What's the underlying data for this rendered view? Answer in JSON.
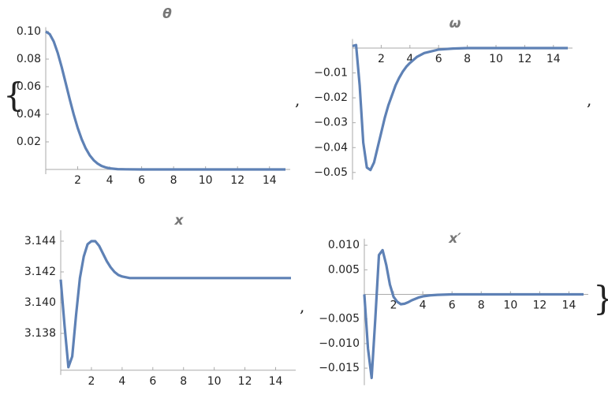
{
  "list_open": "{",
  "separators": [
    ",",
    ",",
    ","
  ],
  "list_close": "}",
  "chart_data": [
    {
      "type": "line",
      "title": "θ",
      "color": "#5e81b5",
      "x": [
        0,
        0.25,
        0.5,
        0.75,
        1,
        1.25,
        1.5,
        1.75,
        2,
        2.25,
        2.5,
        2.75,
        3,
        3.25,
        3.5,
        3.75,
        4,
        4.5,
        5,
        6,
        7,
        8,
        10,
        12,
        15
      ],
      "values": [
        0.1,
        0.0981,
        0.0928,
        0.0845,
        0.0741,
        0.0626,
        0.0509,
        0.0399,
        0.0301,
        0.0219,
        0.0153,
        0.0103,
        0.0067,
        0.0042,
        0.0025,
        0.0015,
        0.0008,
        0.0002,
        0.0001,
        0,
        0,
        0,
        0,
        0,
        0
      ],
      "xlim": [
        0,
        15
      ],
      "ylim": [
        0,
        0.102
      ],
      "xticks": [
        2,
        4,
        6,
        8,
        10,
        12,
        14
      ],
      "yticks": [
        {
          "value": 0.1,
          "label": "0.10"
        },
        0.08,
        0.06,
        0.04,
        0.02
      ]
    },
    {
      "type": "line",
      "title": "ω",
      "color": "#5e81b5",
      "x": [
        0,
        0.25,
        0.5,
        0.75,
        1,
        1.25,
        1.5,
        1.75,
        2,
        2.25,
        2.5,
        2.75,
        3,
        3.25,
        3.5,
        3.75,
        4,
        4.5,
        5,
        6,
        7,
        8,
        10,
        12,
        15
      ],
      "values": [
        0.0008,
        0.0012,
        -0.015,
        -0.038,
        -0.048,
        -0.049,
        -0.046,
        -0.04,
        -0.034,
        -0.028,
        -0.023,
        -0.019,
        -0.015,
        -0.012,
        -0.0095,
        -0.0075,
        -0.006,
        -0.0035,
        -0.002,
        -0.0006,
        -0.0002,
        0,
        0,
        0,
        0
      ],
      "xlim": [
        0,
        15
      ],
      "ylim": [
        -0.051,
        0.003
      ],
      "xticks": [
        2,
        4,
        6,
        8,
        10,
        12,
        14
      ],
      "yticks": [
        {
          "value": -0.01,
          "label": "−0.01"
        },
        {
          "value": -0.02,
          "label": "−0.02"
        },
        {
          "value": -0.03,
          "label": "−0.03"
        },
        {
          "value": -0.04,
          "label": "−0.04"
        },
        {
          "value": -0.05,
          "label": "−0.05"
        }
      ]
    },
    {
      "type": "line",
      "title": "x",
      "color": "#5e81b5",
      "x": [
        0,
        0.25,
        0.5,
        0.75,
        1,
        1.25,
        1.5,
        1.75,
        2,
        2.25,
        2.5,
        2.75,
        3,
        3.25,
        3.5,
        3.75,
        4,
        4.5,
        5,
        6,
        7,
        8,
        10,
        12,
        15
      ],
      "values": [
        3.1415,
        3.1385,
        3.1358,
        3.1365,
        3.1392,
        3.1416,
        3.143,
        3.1438,
        3.144,
        3.144,
        3.1437,
        3.1432,
        3.1427,
        3.1423,
        3.142,
        3.1418,
        3.1417,
        3.1416,
        3.1416,
        3.1416,
        3.1416,
        3.1416,
        3.1416,
        3.1416,
        3.1416
      ],
      "xlim": [
        0,
        15
      ],
      "ylim": [
        3.1356,
        3.1446
      ],
      "xticks": [
        2,
        4,
        6,
        8,
        10,
        12,
        14
      ],
      "yticks": [
        3.144,
        3.142,
        {
          "value": 3.14,
          "label": "3.140"
        },
        3.138
      ]
    },
    {
      "type": "line",
      "title": "x′",
      "color": "#5e81b5",
      "x": [
        0,
        0.25,
        0.5,
        0.75,
        1,
        1.25,
        1.5,
        1.75,
        2,
        2.25,
        2.5,
        2.75,
        3,
        3.25,
        3.5,
        3.75,
        4,
        4.5,
        5,
        6,
        7,
        8,
        10,
        12,
        15
      ],
      "values": [
        0,
        -0.011,
        -0.017,
        -0.005,
        0.008,
        0.009,
        0.006,
        0.002,
        -0.0005,
        -0.0015,
        -0.002,
        -0.0019,
        -0.0016,
        -0.0012,
        -0.0009,
        -0.0006,
        -0.0004,
        -0.0002,
        -0.0001,
        0,
        0,
        0,
        0,
        0,
        0
      ],
      "xlim": [
        0,
        15
      ],
      "ylim": [
        -0.0175,
        0.011
      ],
      "xticks": [
        2,
        4,
        6,
        8,
        10,
        12,
        14
      ],
      "yticks": [
        {
          "value": 0.01,
          "label": "0.010"
        },
        0.005,
        {
          "value": -0.005,
          "label": "−0.005"
        },
        {
          "value": -0.01,
          "label": "−0.010"
        },
        {
          "value": -0.015,
          "label": "−0.015"
        }
      ]
    }
  ]
}
